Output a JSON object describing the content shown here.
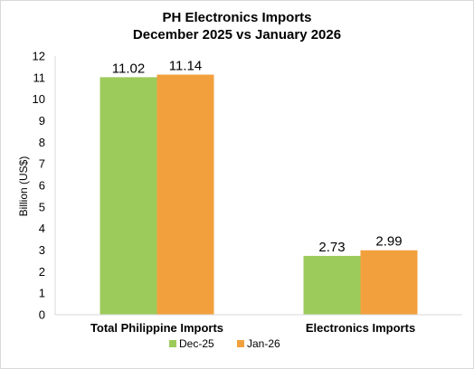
{
  "chart_data": {
    "type": "bar",
    "title": "PH Electronics Imports",
    "subtitle": "December 2025 vs January 2026",
    "xlabel": "",
    "ylabel": "Billion (US$)",
    "categories": [
      "Total Philippine Imports",
      "Electronics Imports"
    ],
    "series": [
      {
        "name": "Dec-25",
        "values": [
          11.02,
          2.73
        ],
        "labels": [
          "11.02",
          "2.73"
        ],
        "color": "#9dcb5b"
      },
      {
        "name": "Jan-26",
        "values": [
          11.14,
          2.99
        ],
        "labels": [
          "11.14",
          "2.99"
        ],
        "color": "#f2a03d"
      }
    ],
    "ylim": [
      0,
      12
    ],
    "yticks": [
      0,
      1,
      2,
      3,
      4,
      5,
      6,
      7,
      8,
      9,
      10,
      11,
      12
    ],
    "grid": false,
    "legend_position": "bottom"
  }
}
